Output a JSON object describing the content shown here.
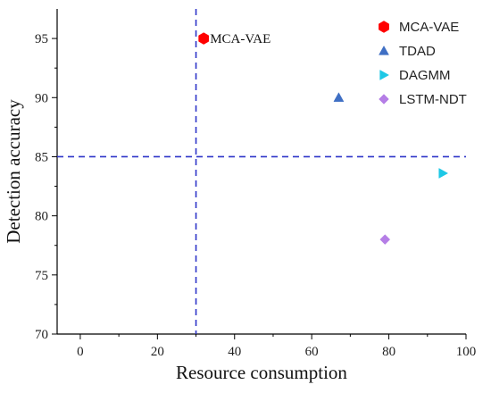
{
  "chart_data": {
    "type": "scatter",
    "xlabel": "Resource consumption",
    "ylabel": "Detection accuracy",
    "xlim": [
      -6,
      100
    ],
    "ylim": [
      70,
      97.5
    ],
    "xticks": [
      0,
      20,
      40,
      60,
      80,
      100
    ],
    "yticks": [
      70,
      75,
      80,
      85,
      90,
      95
    ],
    "grid": false,
    "legend_position": "top-right",
    "series": [
      {
        "name": "MCA-VAE",
        "marker": "hexagon",
        "color": "#ff0000",
        "points": [
          [
            32,
            95
          ]
        ]
      },
      {
        "name": "TDAD",
        "marker": "triangle-up",
        "color": "#3f6fc4",
        "points": [
          [
            67,
            90
          ]
        ]
      },
      {
        "name": "DAGMM",
        "marker": "triangle-right",
        "color": "#1ec8e6",
        "points": [
          [
            94,
            83.6
          ]
        ]
      },
      {
        "name": "LSTM-NDT",
        "marker": "diamond",
        "color": "#b57ee6",
        "points": [
          [
            79,
            78
          ]
        ]
      }
    ],
    "reference_lines": [
      {
        "orientation": "vertical",
        "value": 30,
        "color": "#2d34c8",
        "style": "dashed"
      },
      {
        "orientation": "horizontal",
        "value": 85,
        "color": "#2d34c8",
        "style": "dashed"
      }
    ],
    "annotations": [
      {
        "text": "MCA-VAE",
        "x": 32,
        "y": 95
      }
    ]
  }
}
